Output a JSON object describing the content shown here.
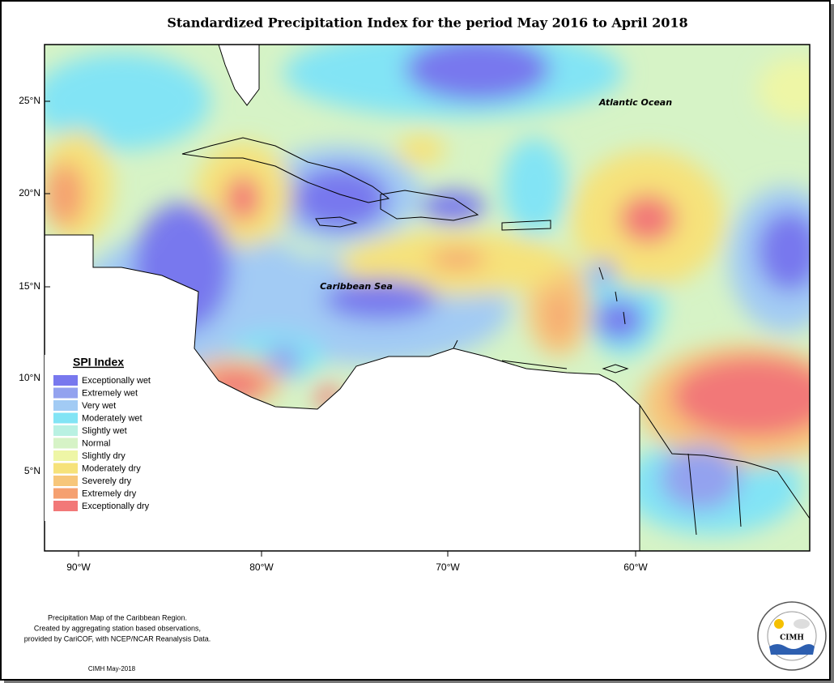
{
  "title": "Standardized Precipitation Index for the period May 2016 to April 2018",
  "map": {
    "lat_labels": [
      "25°N",
      "20°N",
      "15°N",
      "10°N",
      "5°N"
    ],
    "lon_labels": [
      "90°W",
      "80°W",
      "70°W",
      "60°W"
    ],
    "places": [
      "Atlantic Ocean",
      "Caribbean Sea"
    ]
  },
  "legend": {
    "title": "SPI Index",
    "items": [
      {
        "label": "Exceptionally wet",
        "color": "#7878ee"
      },
      {
        "label": "Extremely wet",
        "color": "#93a2ef"
      },
      {
        "label": "Very wet",
        "color": "#a2cbf4"
      },
      {
        "label": "Moderately wet",
        "color": "#82e4f5"
      },
      {
        "label": "Slightly wet",
        "color": "#b9f1e2"
      },
      {
        "label": "Normal",
        "color": "#d6f3c6"
      },
      {
        "label": "Slightly dry",
        "color": "#eef6a6"
      },
      {
        "label": "Moderately dry",
        "color": "#f6e27a"
      },
      {
        "label": "Severely dry",
        "color": "#f7c67a"
      },
      {
        "label": "Extremely dry",
        "color": "#f5a070"
      },
      {
        "label": "Exceptionally dry",
        "color": "#f27878"
      }
    ]
  },
  "notes": [
    "Precipitation Map of the Caribbean Region.",
    "Created by aggregating station based observations,",
    "provided by CariCOF, with NCEP/NCAR Reanalysis Data."
  ],
  "credit": "CIMH May-2018",
  "logo": "CIMH"
}
